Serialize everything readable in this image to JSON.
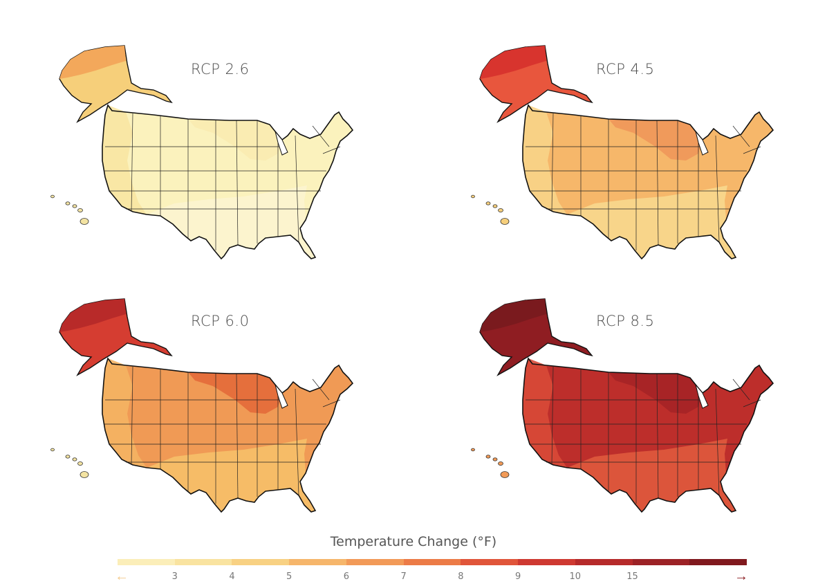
{
  "panels": [
    {
      "title": "RCP 2.6",
      "colors": {
        "conus": "#fbf2bd",
        "west": "#f8e6a2",
        "south": "#fcf4cf",
        "north": "#f9ebb0",
        "alaska": "#f6cf7a",
        "alaska_north": "#f3a85b",
        "hawaii": "#f3e3a2"
      }
    },
    {
      "title": "RCP 4.5",
      "colors": {
        "conus": "#f6b76a",
        "west": "#f8d488",
        "south": "#f8d88e",
        "north": "#f0975a",
        "alaska": "#e8563d",
        "alaska_north": "#d8342e",
        "hawaii": "#f6cf7c"
      }
    },
    {
      "title": "RCP 6.0",
      "colors": {
        "conus": "#f09a55",
        "west": "#f4b463",
        "south": "#f6c069",
        "north": "#e36a3a",
        "alaska": "#d53d31",
        "alaska_north": "#b82a29",
        "hawaii": "#f3e3a2"
      }
    },
    {
      "title": "RCP 8.5",
      "colors": {
        "conus": "#bd2e2b",
        "west": "#d84a37",
        "south": "#df5a3d",
        "north": "#a52326",
        "alaska": "#8f1d22",
        "alaska_north": "#7a1a1e",
        "hawaii": "#f19a57"
      }
    }
  ],
  "legend": {
    "title": "Temperature Change (°F)",
    "colors": [
      "#fbeeb9",
      "#f9e3a0",
      "#f8d183",
      "#f6b66b",
      "#f29a58",
      "#ec7b47",
      "#e0553a",
      "#ce3931",
      "#b62a2a",
      "#9c2226",
      "#80191e"
    ],
    "ticks": [
      "3",
      "4",
      "5",
      "6",
      "7",
      "8",
      "9",
      "10",
      "15"
    ],
    "arrow_left": "←",
    "arrow_right": "→",
    "arrow_left_color": "#f3c98b",
    "arrow_right_color": "#8c1d22"
  }
}
